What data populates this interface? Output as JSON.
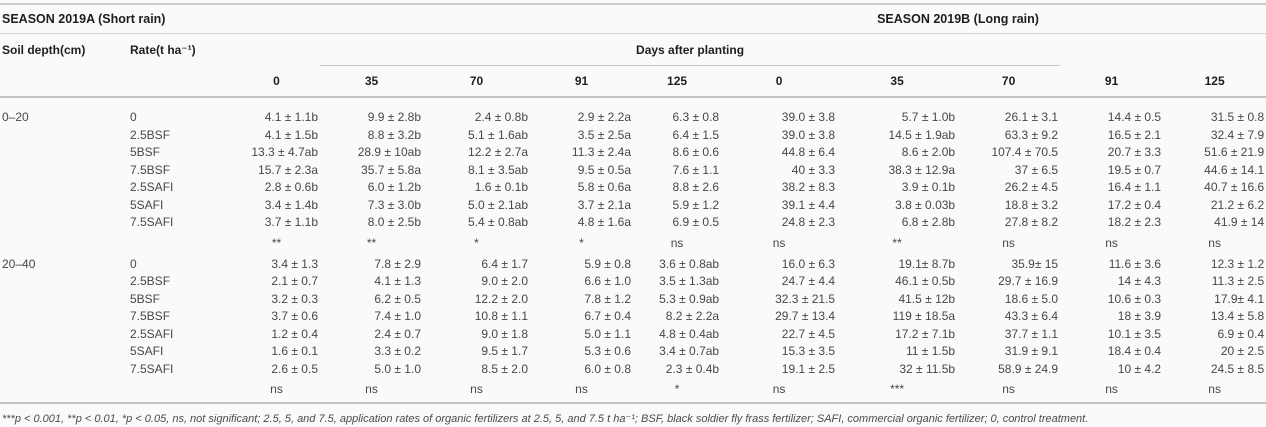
{
  "table": {
    "season_a": "SEASON 2019A (Short rain)",
    "season_b": "SEASON 2019B (Long rain)",
    "soil_depth_header": "Soil depth(cm)",
    "rate_header": "Rate(t ha⁻¹)",
    "days_after_planting": "Days after planting",
    "day_headers": [
      "0",
      "35",
      "70",
      "91",
      "125",
      "0",
      "35",
      "70",
      "91",
      "125"
    ],
    "sections": [
      {
        "depth": "0–20",
        "rows": [
          {
            "rate": "0",
            "values": [
              "4.1 ± 1.1b",
              "9.9 ± 2.8b",
              "2.4 ± 0.8b",
              "2.9 ± 2.2a",
              "6.3 ± 0.8",
              "39.0 ± 3.8",
              "5.7 ± 1.0b",
              "26.1 ± 3.1",
              "14.4 ± 0.5",
              "31.5 ± 0.8"
            ]
          },
          {
            "rate": "2.5BSF",
            "values": [
              "4.1 ± 1.5b",
              "8.8 ± 3.2b",
              "5.1 ± 1.6ab",
              "3.5 ± 2.5a",
              "6.4 ± 1.5",
              "39.0 ± 3.8",
              "14.5 ± 1.9ab",
              "63.3 ± 9.2",
              "16.5 ± 2.1",
              "32.4 ± 7.9"
            ]
          },
          {
            "rate": "5BSF",
            "values": [
              "13.3 ± 4.7ab",
              "28.9 ± 10ab",
              "12.2 ± 2.7a",
              "11.3 ± 2.4a",
              "8.6 ± 0.6",
              "44.8 ± 6.4",
              "8.6 ± 2.0b",
              "107.4 ± 70.5",
              "20.7 ± 3.3",
              "51.6 ± 21.9"
            ]
          },
          {
            "rate": "7.5BSF",
            "values": [
              "15.7 ± 2.3a",
              "35.7 ± 5.8a",
              "8.1 ± 3.5ab",
              "9.5 ± 0.5a",
              "7.6 ± 1.1",
              "40 ± 3.3",
              "38.3 ± 12.9a",
              "37 ± 6.5",
              "19.5 ± 0.7",
              "44.6 ± 14.1"
            ]
          },
          {
            "rate": "2.5SAFI",
            "values": [
              "2.8 ± 0.6b",
              "6.0 ± 1.2b",
              "1.6 ± 0.1b",
              "5.8 ± 0.6a",
              "8.8 ± 2.6",
              "38.2 ± 8.3",
              "3.9 ± 0.1b",
              "26.2 ± 4.5",
              "16.4 ± 1.1",
              "40.7 ± 16.6"
            ]
          },
          {
            "rate": "5SAFI",
            "values": [
              "3.4 ± 1.4b",
              "7.3 ± 3.0b",
              "5.0 ± 2.1ab",
              "3.7 ± 2.1a",
              "5.9 ± 1.2",
              "39.1 ± 4.4",
              "3.8 ± 0.03b",
              "18.8 ± 3.2",
              "17.2 ± 0.4",
              "21.2 ± 6.2"
            ]
          },
          {
            "rate": "7.5SAFI",
            "values": [
              "3.7 ± 1.1b",
              "8.0 ± 2.5b",
              "5.4 ± 0.8ab",
              "4.8 ± 1.6a",
              "6.9 ± 0.5",
              "24.8 ± 2.3",
              "6.8 ± 2.8b",
              "27.8 ± 8.2",
              "18.2 ± 2.3",
              "41.9 ± 14"
            ]
          }
        ],
        "significance": [
          "**",
          "**",
          "*",
          "*",
          "ns",
          "ns",
          "**",
          "ns",
          "ns",
          "ns"
        ]
      },
      {
        "depth": "20–40",
        "rows": [
          {
            "rate": "0",
            "values": [
              "3.4 ± 1.3",
              "7.8 ± 2.9",
              "6.4 ± 1.7",
              "5.9 ± 0.8",
              "3.6 ± 0.8ab",
              "16.0 ± 6.3",
              "19.1± 8.7b",
              "35.9± 15",
              "11.6 ± 3.6",
              "12.3 ± 1.2"
            ]
          },
          {
            "rate": "2.5BSF",
            "values": [
              "2.1 ± 0.7",
              "4.1 ± 1.3",
              "9.0 ± 2.0",
              "6.6 ± 1.0",
              "3.5 ± 1.3ab",
              "24.7 ± 4.4",
              "46.1 ± 0.5b",
              "29.7 ± 16.9",
              "14 ± 4.3",
              "11.3 ± 2.5"
            ]
          },
          {
            "rate": "5BSF",
            "values": [
              "3.2 ± 0.3",
              "6.2 ± 0.5",
              "12.2 ± 2.0",
              "7.8 ± 1.2",
              "5.3 ± 0.9ab",
              "32.3 ± 21.5",
              "41.5 ± 12b",
              "18.6 ± 5.0",
              "10.6 ± 0.3",
              "17.9± 4.1"
            ]
          },
          {
            "rate": "7.5BSF",
            "values": [
              "3.7 ± 0.6",
              "7.4 ± 1.0",
              "10.8 ± 1.1",
              "6.7 ± 0.4",
              "8.2 ± 2.2a",
              "29.7 ± 13.4",
              "119 ± 18.5a",
              "43.3 ± 6.4",
              "18 ± 3.9",
              "13.4 ± 5.8"
            ]
          },
          {
            "rate": "2.5SAFI",
            "values": [
              "1.2 ± 0.4",
              "2.4 ± 0.7",
              "9.0 ± 1.8",
              "5.0 ± 1.1",
              "4.8 ± 0.4ab",
              "22.7 ± 4.5",
              "17.2 ± 7.1b",
              "37.7 ± 1.1",
              "10.1 ± 3.5",
              "6.9 ± 0.4"
            ]
          },
          {
            "rate": "5SAFI",
            "values": [
              "1.6 ± 0.1",
              "3.3 ± 0.2",
              "9.5 ± 1.7",
              "5.3 ± 0.6",
              "3.4 ± 0.7ab",
              "15.3 ± 3.5",
              "11 ± 1.5b",
              "31.9 ± 9.1",
              "18.4 ± 0.4",
              "20 ± 2.5"
            ]
          },
          {
            "rate": "7.5SAFI",
            "values": [
              "2.6 ± 0.5",
              "5.0 ± 1.0",
              "8.5 ± 2.0",
              "6.0 ± 0.8",
              "2.3 ± 0.4b",
              "19.1 ± 2.5",
              "32 ± 11.5b",
              "58.9 ± 24.9",
              "10 ± 4.2",
              "24.5 ± 8.5"
            ]
          }
        ],
        "significance": [
          "ns",
          "ns",
          "ns",
          "ns",
          "*",
          "ns",
          "***",
          "ns",
          "ns",
          "ns"
        ]
      }
    ],
    "footnote": "***p < 0.001, **p < 0.01, *p < 0.05, ns, not significant; 2.5, 5, and 7.5, application rates of organic fertilizers at 2.5, 5, and 7.5 t ha⁻¹; BSF, black soldier fly frass fertilizer; SAFI, commercial organic fertilizer; 0, control treatment."
  }
}
